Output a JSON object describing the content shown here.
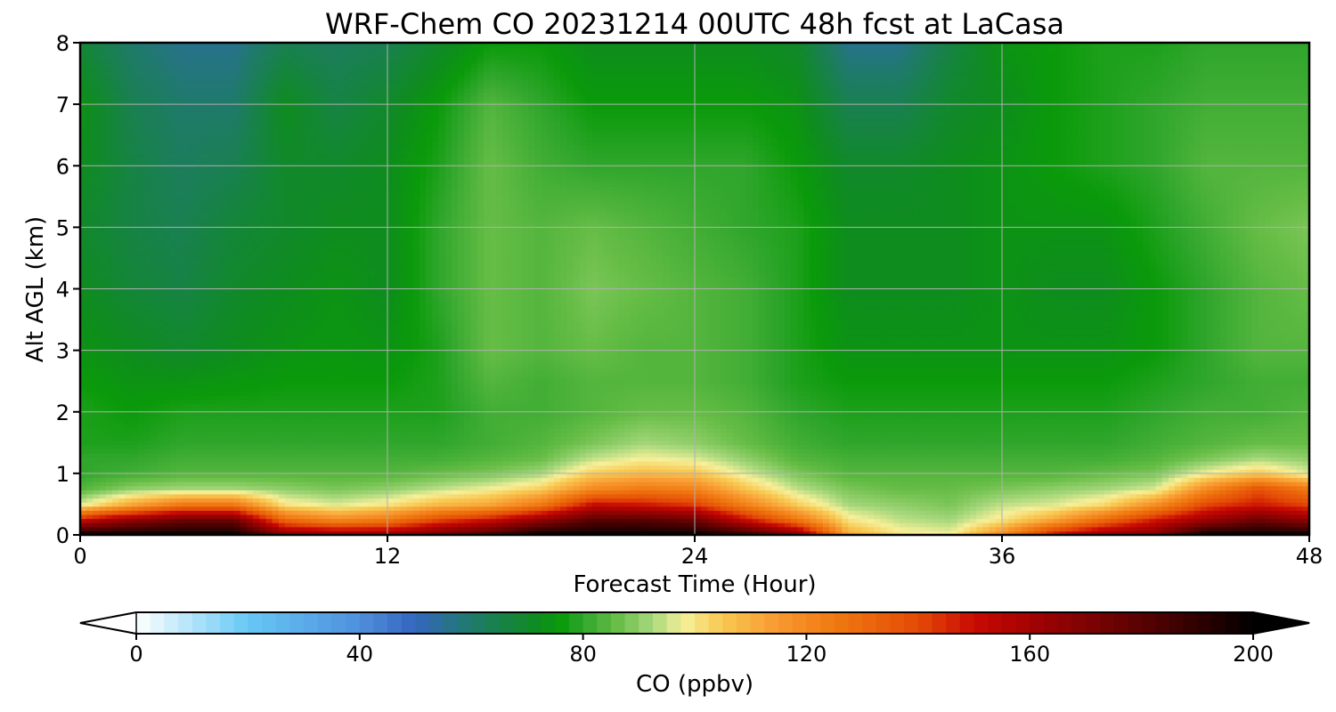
{
  "chart_data": {
    "type": "heatmap",
    "title": "WRF-Chem CO  20231214 00UTC 48h fcst at LaCasa",
    "xlabel": "Forecast Time (Hour)",
    "ylabel": "Alt AGL (km)",
    "xlim": [
      0,
      48
    ],
    "ylim": [
      0,
      8
    ],
    "xticks": [
      "0",
      "12",
      "24",
      "36",
      "48"
    ],
    "yticks": [
      "0",
      "1",
      "2",
      "3",
      "4",
      "5",
      "6",
      "7",
      "8"
    ],
    "grid": true,
    "x_hours": [
      0,
      2,
      4,
      6,
      8,
      10,
      12,
      14,
      16,
      18,
      20,
      22,
      24,
      26,
      28,
      30,
      32,
      34,
      36,
      38,
      40,
      42,
      44,
      46,
      48
    ],
    "alt_km": [
      0,
      0.25,
      0.5,
      0.75,
      1,
      1.25,
      1.5,
      2,
      2.5,
      3,
      4,
      5,
      6,
      7,
      8
    ],
    "co_ppbv": [
      [
        200,
        150,
        96,
        84,
        80,
        80,
        78,
        78,
        76,
        74,
        72,
        70,
        72,
        74,
        68
      ],
      [
        200,
        165,
        112,
        90,
        82,
        80,
        78,
        76,
        74,
        72,
        68,
        66,
        66,
        64,
        60
      ],
      [
        200,
        175,
        125,
        92,
        84,
        82,
        80,
        78,
        74,
        70,
        66,
        64,
        62,
        60,
        56
      ],
      [
        200,
        175,
        125,
        92,
        84,
        82,
        80,
        78,
        75,
        72,
        70,
        68,
        64,
        60,
        56
      ],
      [
        170,
        130,
        100,
        90,
        84,
        82,
        80,
        78,
        76,
        74,
        72,
        70,
        70,
        72,
        64
      ],
      [
        165,
        120,
        96,
        88,
        84,
        82,
        80,
        78,
        76,
        75,
        74,
        72,
        70,
        66,
        62
      ],
      [
        165,
        125,
        100,
        90,
        84,
        82,
        80,
        78,
        76,
        74,
        72,
        72,
        72,
        70,
        64
      ],
      [
        175,
        140,
        108,
        94,
        86,
        82,
        80,
        78,
        78,
        78,
        80,
        80,
        78,
        76,
        70
      ],
      [
        185,
        150,
        112,
        98,
        88,
        84,
        82,
        82,
        84,
        86,
        86,
        86,
        86,
        84,
        76
      ],
      [
        200,
        165,
        125,
        104,
        92,
        86,
        84,
        82,
        82,
        84,
        84,
        84,
        82,
        80,
        76
      ],
      [
        200,
        180,
        150,
        120,
        104,
        94,
        88,
        84,
        84,
        86,
        88,
        86,
        80,
        76,
        72
      ],
      [
        200,
        180,
        148,
        125,
        108,
        98,
        92,
        86,
        84,
        84,
        86,
        84,
        80,
        76,
        72
      ],
      [
        200,
        175,
        142,
        122,
        106,
        96,
        90,
        86,
        84,
        84,
        84,
        82,
        80,
        76,
        72
      ],
      [
        190,
        150,
        122,
        106,
        96,
        90,
        86,
        84,
        82,
        82,
        82,
        80,
        80,
        76,
        72
      ],
      [
        170,
        126,
        104,
        94,
        88,
        84,
        82,
        80,
        78,
        78,
        78,
        78,
        76,
        74,
        70
      ],
      [
        112,
        100,
        92,
        88,
        84,
        82,
        80,
        78,
        76,
        74,
        72,
        72,
        70,
        64,
        56
      ],
      [
        100,
        94,
        90,
        86,
        84,
        82,
        80,
        78,
        76,
        74,
        72,
        72,
        70,
        64,
        56
      ],
      [
        98,
        92,
        88,
        86,
        84,
        82,
        80,
        78,
        76,
        74,
        72,
        72,
        72,
        70,
        66
      ],
      [
        120,
        100,
        94,
        88,
        84,
        82,
        80,
        78,
        76,
        74,
        74,
        74,
        74,
        72,
        74
      ],
      [
        150,
        112,
        96,
        90,
        84,
        82,
        80,
        78,
        76,
        74,
        72,
        74,
        76,
        76,
        76
      ],
      [
        165,
        130,
        102,
        92,
        86,
        82,
        80,
        78,
        76,
        74,
        72,
        74,
        78,
        78,
        78
      ],
      [
        170,
        148,
        118,
        96,
        88,
        84,
        82,
        80,
        78,
        76,
        76,
        78,
        80,
        80,
        78
      ],
      [
        200,
        162,
        140,
        120,
        98,
        88,
        84,
        82,
        80,
        80,
        80,
        82,
        84,
        82,
        80
      ],
      [
        200,
        175,
        148,
        138,
        105,
        92,
        86,
        82,
        82,
        84,
        84,
        86,
        84,
        82,
        80
      ],
      [
        200,
        165,
        140,
        125,
        96,
        90,
        86,
        84,
        82,
        84,
        86,
        88,
        84,
        82,
        80
      ]
    ],
    "colorbar": {
      "label": "CO  (ppbv)",
      "min": 0,
      "max": 200,
      "ticks": [
        "0",
        "40",
        "80",
        "120",
        "160",
        "200"
      ],
      "extend": "both",
      "colormap": [
        {
          "v": 0,
          "color": "#ffffff"
        },
        {
          "v": 20,
          "color": "#66c8f5"
        },
        {
          "v": 40,
          "color": "#4f8fdc"
        },
        {
          "v": 50,
          "color": "#3366bf"
        },
        {
          "v": 60,
          "color": "#1f7a6a"
        },
        {
          "v": 72,
          "color": "#0e8c1e"
        },
        {
          "v": 76,
          "color": "#0a9a0a"
        },
        {
          "v": 80,
          "color": "#30a62c"
        },
        {
          "v": 86,
          "color": "#66bd46"
        },
        {
          "v": 92,
          "color": "#a4d67a"
        },
        {
          "v": 98,
          "color": "#f6f09a"
        },
        {
          "v": 105,
          "color": "#f8c850"
        },
        {
          "v": 115,
          "color": "#f89830"
        },
        {
          "v": 125,
          "color": "#f07a10"
        },
        {
          "v": 140,
          "color": "#e44a06"
        },
        {
          "v": 150,
          "color": "#c80a02"
        },
        {
          "v": 160,
          "color": "#a40202"
        },
        {
          "v": 175,
          "color": "#6c0202"
        },
        {
          "v": 190,
          "color": "#300000"
        },
        {
          "v": 200,
          "color": "#000000"
        }
      ]
    }
  }
}
